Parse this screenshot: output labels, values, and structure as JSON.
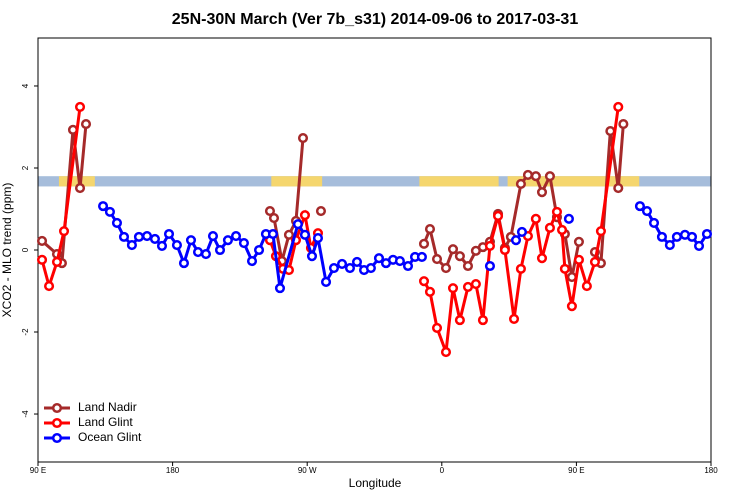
{
  "chart_data": {
    "type": "line",
    "title": "25N-30N March (Ver 7b_s31)   2014-09-06 to 2017-03-31",
    "xlabel": "Longitude",
    "ylabel": "XCO2 - MLO trend (ppm)",
    "xlim": [
      90,
      540
    ],
    "ylim": [
      -5.17,
      5.17
    ],
    "xticks": [
      {
        "value": 90,
        "label": "90 E"
      },
      180,
      {
        "value": 270,
        "label": "90 W"
      },
      {
        "value": 360,
        "label": "0"
      },
      {
        "value": 450,
        "label": "90 E"
      },
      {
        "value": 540,
        "label": "180"
      }
    ],
    "yticks": [
      -4,
      -2,
      0,
      2,
      4
    ],
    "legend": "bottom-left",
    "band": {
      "ylim": [
        1.55,
        1.8
      ],
      "ocean_color": "#a6bddb",
      "land_color": "#f5d66e",
      "land_segments": [
        [
          104,
          128
        ],
        [
          246,
          280
        ],
        [
          345,
          398
        ],
        [
          404,
          492
        ]
      ]
    },
    "series": [
      {
        "name": "Land Nadir",
        "color": "#a52a2a",
        "x": [
          92.7,
          102.7,
          106.0,
          113.4,
          118.1,
          122.1,
          null,
          245.1,
          247.8,
          253.1,
          257.8,
          262.5,
          267.2,
          null,
          279.2,
          null,
          348.1,
          352.1,
          356.8,
          362.8,
          367.5,
          372.1,
          377.5,
          382.8,
          387.5,
          392.2,
          397.6,
          402.2,
          406.2,
          412.9,
          417.6,
          422.9,
          427.0,
          432.3,
          437.0,
          442.3,
          447.0,
          451.7,
          null,
          462.4,
          466.4,
          472.7,
          478.0,
          481.4
        ],
        "values": [
          0.22,
          -0.1,
          -0.32,
          2.93,
          1.51,
          3.07,
          null,
          0.95,
          0.78,
          -0.27,
          0.37,
          0.71,
          2.73,
          null,
          0.95,
          null,
          0.15,
          0.51,
          -0.22,
          -0.44,
          0.02,
          -0.15,
          -0.39,
          -0.02,
          0.07,
          0.2,
          0.88,
          0.05,
          0.32,
          1.61,
          1.83,
          1.8,
          1.41,
          1.8,
          0.8,
          0.39,
          -0.66,
          0.2,
          null,
          -0.05,
          -0.32,
          2.9,
          1.51,
          3.07
        ]
      },
      {
        "name": "Land Glint",
        "color": "#ff0000",
        "x": [
          92.7,
          97.4,
          102.7,
          107.4,
          118.1,
          null,
          245.1,
          249.1,
          253.8,
          257.8,
          262.5,
          268.5,
          272.5,
          277.2,
          null,
          348.1,
          352.1,
          356.8,
          362.8,
          367.5,
          372.1,
          377.5,
          382.8,
          387.5,
          392.2,
          397.6,
          402.2,
          408.3,
          412.9,
          417.6,
          422.9,
          427.0,
          432.3,
          437.0,
          440.4,
          442.3,
          447.0,
          451.7,
          457.0,
          462.4,
          466.4,
          478.0
        ],
        "values": [
          -0.24,
          -0.88,
          -0.29,
          0.46,
          3.49,
          null,
          0.24,
          -0.15,
          -0.46,
          -0.49,
          0.24,
          0.85,
          0.05,
          0.41,
          null,
          -0.76,
          -1.02,
          -1.9,
          -2.49,
          -0.93,
          -1.71,
          -0.9,
          -0.83,
          -1.71,
          0.1,
          0.83,
          0,
          -1.68,
          -0.46,
          0.34,
          0.76,
          -0.2,
          0.54,
          0.93,
          0.49,
          -0.46,
          -1.37,
          -0.24,
          -0.88,
          -0.29,
          0.46,
          3.49
        ]
      },
      {
        "name": "Ocean Glint",
        "color": "#0000ff",
        "x": [
          133.5,
          138.1,
          142.8,
          147.5,
          152.8,
          157.5,
          162.9,
          168.2,
          172.9,
          177.6,
          182.9,
          187.6,
          192.3,
          197.0,
          202.3,
          207.0,
          211.7,
          217.0,
          222.4,
          227.7,
          233.1,
          237.8,
          242.4,
          247.1,
          251.8,
          263.8,
          268.5,
          273.2,
          277.2,
          282.6,
          287.9,
          293.3,
          298.6,
          303.3,
          308.0,
          312.6,
          318.0,
          322.7,
          327.4,
          332.0,
          337.4,
          342.1,
          346.7,
          null,
          392.2,
          null,
          409.6,
          413.6,
          null,
          445.0,
          null,
          492.5,
          497.2,
          501.9,
          507.2,
          512.5,
          517.2,
          522.6,
          527.3,
          532.0,
          537.3
        ],
        "values": [
          1.07,
          0.93,
          0.66,
          0.32,
          0.12,
          0.32,
          0.34,
          0.27,
          0.1,
          0.39,
          0.12,
          -0.32,
          0.24,
          -0.05,
          -0.1,
          0.34,
          0,
          0.24,
          0.34,
          0.17,
          -0.27,
          0,
          0.39,
          0.39,
          -0.93,
          0.63,
          0.37,
          -0.15,
          0.29,
          -0.78,
          -0.44,
          -0.34,
          -0.44,
          -0.29,
          -0.49,
          -0.44,
          -0.2,
          -0.32,
          -0.24,
          -0.27,
          -0.39,
          -0.17,
          -0.17,
          null,
          -0.39,
          null,
          0.24,
          0.44,
          null,
          0.76,
          null,
          1.07,
          0.95,
          0.66,
          0.32,
          0.12,
          0.32,
          0.37,
          0.32,
          0.1,
          0.39
        ]
      }
    ]
  }
}
